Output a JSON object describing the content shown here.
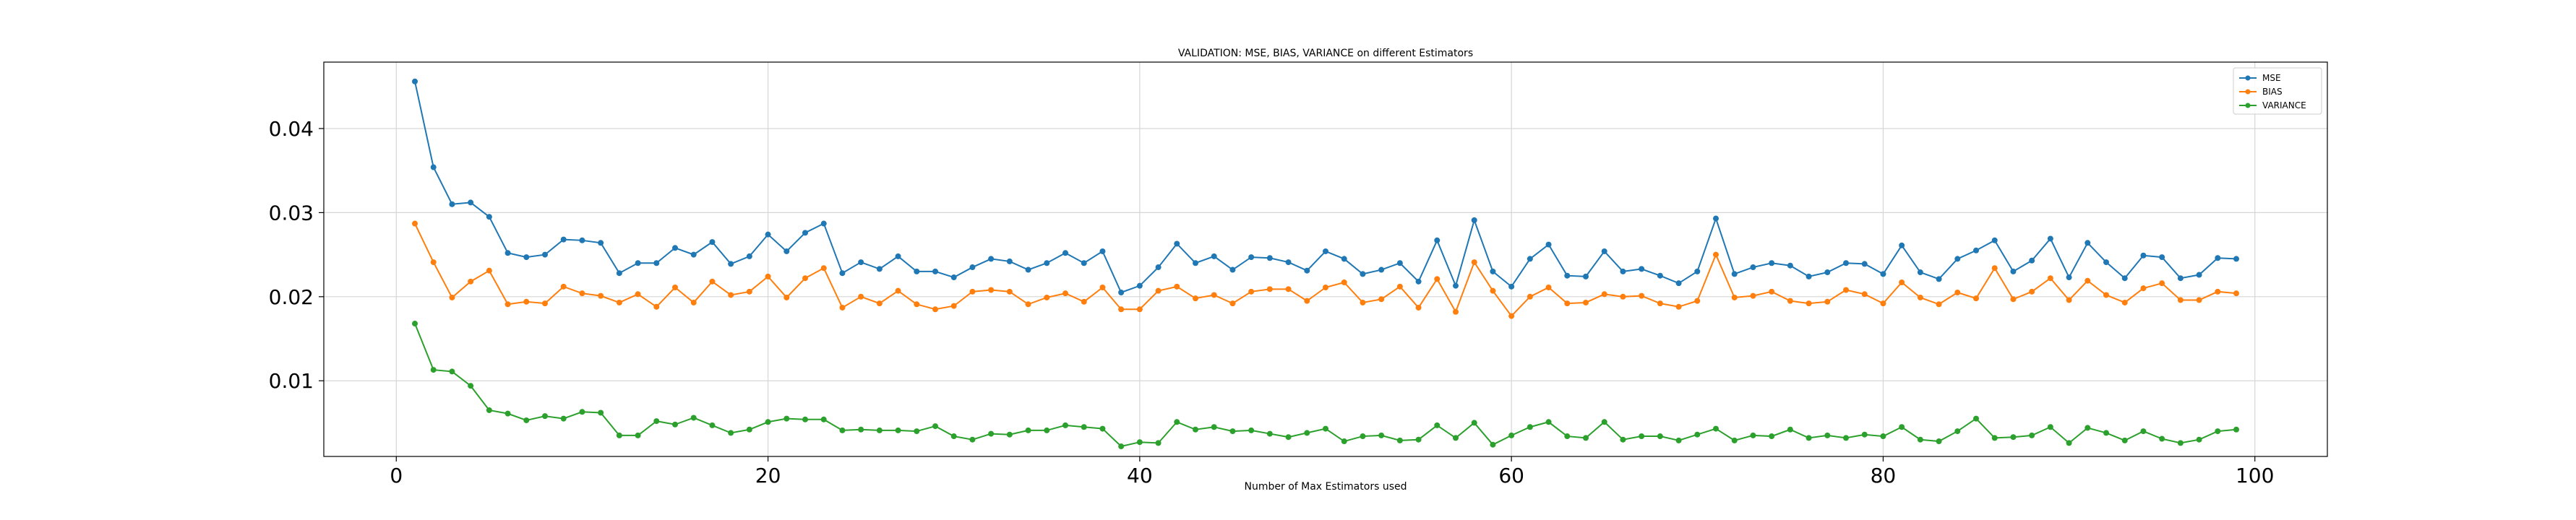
{
  "chart_data": {
    "type": "line",
    "title": "VALIDATION: MSE, BIAS, VARIANCE on different Estimators",
    "xlabel": "Number of Max Estimators used",
    "ylabel": "",
    "xlim": [
      -3.9,
      103.9
    ],
    "ylim": [
      0.001,
      0.0479
    ],
    "xticks": [
      0,
      20,
      40,
      60,
      80,
      100
    ],
    "yticks": [
      0.01,
      0.02,
      0.03,
      0.04
    ],
    "xtick_labels": [
      "0",
      "20",
      "40",
      "60",
      "80",
      "100"
    ],
    "ytick_labels": [
      "0.01",
      "0.02",
      "0.03",
      "0.04"
    ],
    "grid": true,
    "legend": {
      "position": "top-right"
    },
    "x": [
      1,
      2,
      3,
      4,
      5,
      6,
      7,
      8,
      9,
      10,
      11,
      12,
      13,
      14,
      15,
      16,
      17,
      18,
      19,
      20,
      21,
      22,
      23,
      24,
      25,
      26,
      27,
      28,
      29,
      30,
      31,
      32,
      33,
      34,
      35,
      36,
      37,
      38,
      39,
      40,
      41,
      42,
      43,
      44,
      45,
      46,
      47,
      48,
      49,
      50,
      51,
      52,
      53,
      54,
      55,
      56,
      57,
      58,
      59,
      60,
      61,
      62,
      63,
      64,
      65,
      66,
      67,
      68,
      69,
      70,
      71,
      72,
      73,
      74,
      75,
      76,
      77,
      78,
      79,
      80,
      81,
      82,
      83,
      84,
      85,
      86,
      87,
      88,
      89,
      90,
      91,
      92,
      93,
      94,
      95,
      96,
      97,
      98,
      99
    ],
    "series": [
      {
        "name": "MSE",
        "color": "#1f77b4",
        "values": [
          0.0456,
          0.0354,
          0.031,
          0.0312,
          0.0295,
          0.0252,
          0.0247,
          0.025,
          0.0268,
          0.0267,
          0.0264,
          0.0228,
          0.024,
          0.024,
          0.0258,
          0.025,
          0.0265,
          0.0239,
          0.0248,
          0.0274,
          0.0254,
          0.0276,
          0.0287,
          0.0228,
          0.0241,
          0.0233,
          0.0248,
          0.023,
          0.023,
          0.0223,
          0.0235,
          0.0245,
          0.0242,
          0.0232,
          0.024,
          0.0252,
          0.024,
          0.0254,
          0.0205,
          0.0213,
          0.0235,
          0.0263,
          0.024,
          0.0248,
          0.0232,
          0.0247,
          0.0246,
          0.0241,
          0.0231,
          0.0254,
          0.0245,
          0.0227,
          0.0232,
          0.024,
          0.0218,
          0.0267,
          0.0213,
          0.0291,
          0.023,
          0.0212,
          0.0245,
          0.0262,
          0.0225,
          0.0224,
          0.0254,
          0.023,
          0.0233,
          0.0225,
          0.0216,
          0.023,
          0.0293,
          0.0227,
          0.0235,
          0.024,
          0.0237,
          0.0224,
          0.0229,
          0.024,
          0.0239,
          0.0227,
          0.0261,
          0.0229,
          0.0221,
          0.0245,
          0.0255,
          0.0267,
          0.023,
          0.0243,
          0.0269,
          0.0223,
          0.0264,
          0.0241,
          0.0222,
          0.0249,
          0.0247,
          0.0222,
          0.0226,
          0.0246,
          0.0245
        ]
      },
      {
        "name": "BIAS",
        "color": "#ff7f0e",
        "values": [
          0.0287,
          0.0241,
          0.0199,
          0.0218,
          0.0231,
          0.0191,
          0.0194,
          0.0192,
          0.0212,
          0.0204,
          0.0201,
          0.0193,
          0.0203,
          0.0188,
          0.0211,
          0.0193,
          0.0218,
          0.0202,
          0.0206,
          0.0224,
          0.0199,
          0.0222,
          0.0234,
          0.0187,
          0.02,
          0.0192,
          0.0207,
          0.0191,
          0.0185,
          0.0189,
          0.0206,
          0.0208,
          0.0206,
          0.0191,
          0.0199,
          0.0204,
          0.0194,
          0.0211,
          0.0185,
          0.0185,
          0.0207,
          0.0212,
          0.0198,
          0.0202,
          0.0192,
          0.0206,
          0.0209,
          0.0209,
          0.0195,
          0.0211,
          0.0217,
          0.0193,
          0.0197,
          0.0212,
          0.0187,
          0.0221,
          0.0182,
          0.0241,
          0.0207,
          0.0177,
          0.02,
          0.0211,
          0.0192,
          0.0193,
          0.0203,
          0.02,
          0.0201,
          0.0192,
          0.0188,
          0.0195,
          0.025,
          0.0199,
          0.0201,
          0.0206,
          0.0195,
          0.0192,
          0.0194,
          0.0208,
          0.0203,
          0.0192,
          0.0217,
          0.0199,
          0.0191,
          0.0205,
          0.0198,
          0.0234,
          0.0197,
          0.0206,
          0.0222,
          0.0196,
          0.0219,
          0.0202,
          0.0193,
          0.021,
          0.0216,
          0.0196,
          0.0196,
          0.0206,
          0.0204
        ]
      },
      {
        "name": "VARIANCE",
        "color": "#2ca02c",
        "values": [
          0.0168,
          0.0113,
          0.0111,
          0.0094,
          0.0065,
          0.0061,
          0.0053,
          0.0058,
          0.0055,
          0.0063,
          0.0062,
          0.0035,
          0.0035,
          0.0052,
          0.0048,
          0.0056,
          0.0047,
          0.0038,
          0.0042,
          0.0051,
          0.0055,
          0.0054,
          0.0054,
          0.0041,
          0.0042,
          0.0041,
          0.0041,
          0.004,
          0.0046,
          0.0034,
          0.003,
          0.0037,
          0.0036,
          0.0041,
          0.0041,
          0.0047,
          0.0045,
          0.0043,
          0.0022,
          0.0027,
          0.0026,
          0.0051,
          0.0042,
          0.0045,
          0.004,
          0.0041,
          0.0037,
          0.0033,
          0.0038,
          0.0043,
          0.0028,
          0.0034,
          0.0035,
          0.0029,
          0.003,
          0.0047,
          0.0032,
          0.005,
          0.0024,
          0.0035,
          0.0045,
          0.0051,
          0.0034,
          0.0032,
          0.0051,
          0.003,
          0.0034,
          0.0034,
          0.0029,
          0.0036,
          0.0043,
          0.0029,
          0.0035,
          0.0034,
          0.0042,
          0.0032,
          0.0035,
          0.0032,
          0.0036,
          0.0034,
          0.0045,
          0.003,
          0.0028,
          0.004,
          0.0055,
          0.0032,
          0.0033,
          0.0035,
          0.0045,
          0.0026,
          0.0044,
          0.0038,
          0.0029,
          0.004,
          0.0031,
          0.0026,
          0.003,
          0.004,
          0.0042
        ]
      }
    ]
  }
}
